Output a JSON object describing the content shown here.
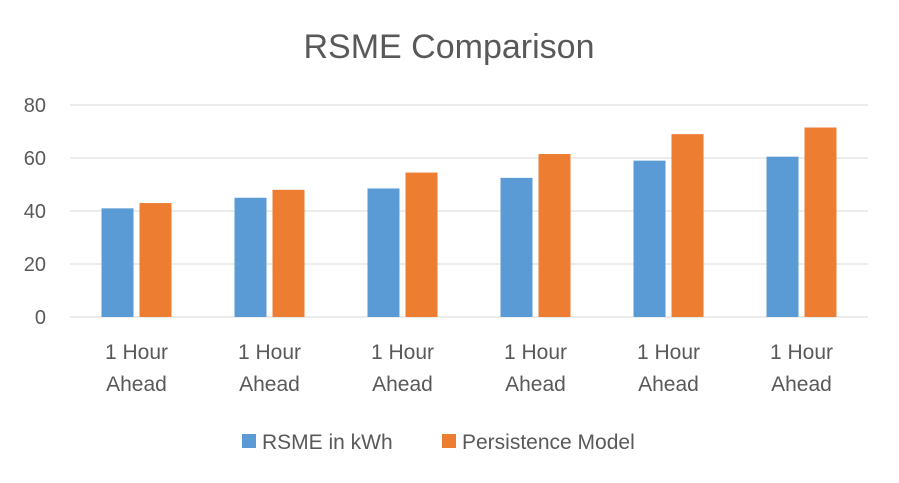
{
  "chart_data": {
    "type": "bar",
    "title": "RSME Comparison",
    "xlabel": "",
    "ylabel": "",
    "ylim": [
      0,
      80
    ],
    "yticks": [
      0,
      20,
      40,
      60,
      80
    ],
    "grid": true,
    "legend_position": "bottom",
    "categories": [
      [
        "1 Hour",
        "Ahead"
      ],
      [
        "1 Hour",
        "Ahead"
      ],
      [
        "1 Hour",
        "Ahead"
      ],
      [
        "1 Hour",
        "Ahead"
      ],
      [
        "1 Hour",
        "Ahead"
      ],
      [
        "1 Hour",
        "Ahead"
      ]
    ],
    "series": [
      {
        "name": "RSME in kWh",
        "color": "#5b9bd5",
        "values": [
          41,
          45,
          48.5,
          52.5,
          59,
          60.5
        ]
      },
      {
        "name": "Persistence Model",
        "color": "#ed7d31",
        "values": [
          43,
          48,
          54.5,
          61.5,
          69,
          71.5
        ]
      }
    ]
  }
}
